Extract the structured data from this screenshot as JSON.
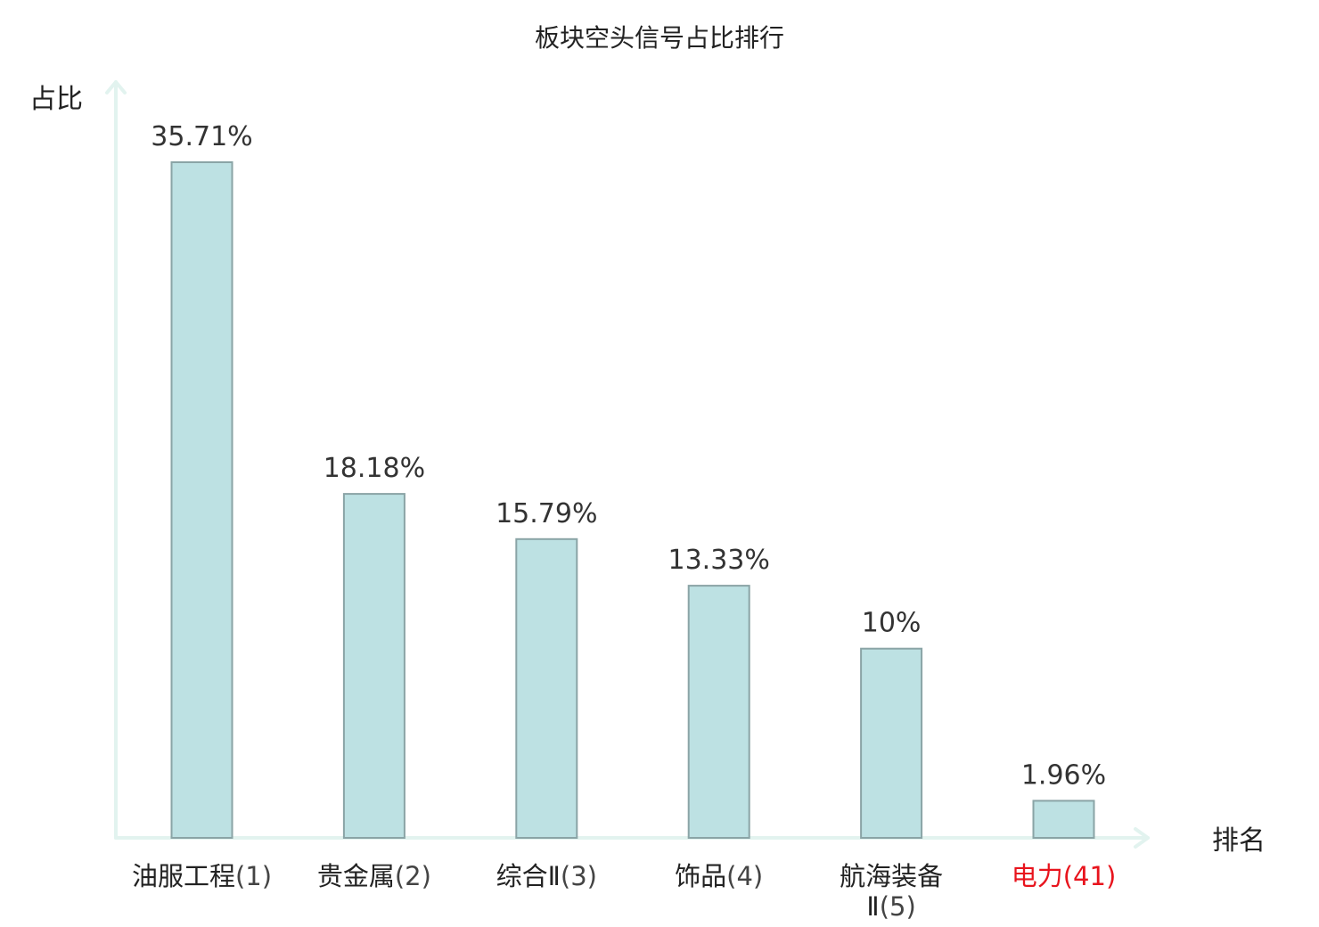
{
  "chart_data": {
    "type": "bar",
    "title": "板块空头信号占比排行",
    "ylabel": "占比",
    "xlabel": "排名",
    "ylim": [
      0,
      40
    ],
    "grid": false,
    "categories": [
      {
        "name": "油服工程",
        "rank": "(1)"
      },
      {
        "name": "贵金属",
        "rank": "(2)"
      },
      {
        "name": "综合Ⅱ",
        "rank": "(3)"
      },
      {
        "name": "饰品",
        "rank": "(4)"
      },
      {
        "name": "航海装备Ⅱ",
        "rank": "(5)"
      },
      {
        "name": "电力",
        "rank": "(41)",
        "highlight": true
      }
    ],
    "values": [
      35.71,
      18.18,
      15.79,
      13.33,
      10,
      1.96
    ],
    "value_labels": [
      "35.71%",
      "18.18%",
      "15.79%",
      "13.33%",
      "10%",
      "1.96%"
    ],
    "colors": {
      "bar_fill": "#bde1e3",
      "bar_stroke": "#8aa4a6",
      "axis": "#e2f3ef",
      "highlight_label": "#e8141d"
    }
  }
}
